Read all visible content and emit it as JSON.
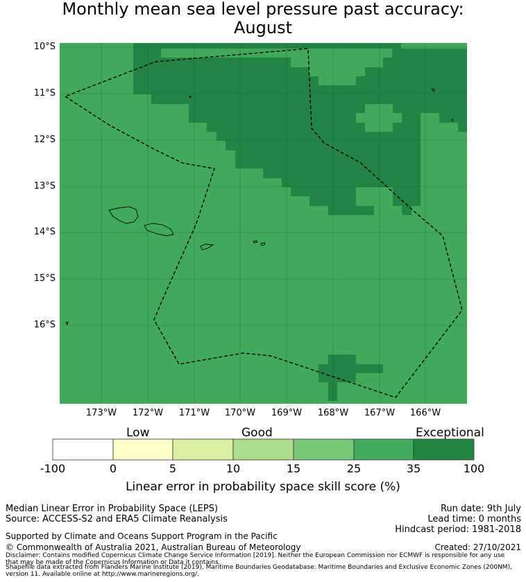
{
  "title": {
    "line1": "Monthly mean sea level pressure past accuracy:",
    "line2": "August"
  },
  "map": {
    "lat_labels": [
      "10°S",
      "11°S",
      "12°S",
      "13°S",
      "14°S",
      "15°S",
      "16°S"
    ],
    "lon_labels": [
      "173°W",
      "172°W",
      "171°W",
      "170°W",
      "169°W",
      "168°W",
      "167°W",
      "166°W"
    ],
    "colors": {
      "good_high": "#41aa5a",
      "exceptional": "#238445",
      "grid": "#1a5e30",
      "eez_line": "#000000",
      "land": "#41aa5a"
    }
  },
  "colorbar": {
    "categories": [
      "Low",
      "Good",
      "Exceptional"
    ],
    "ticks": [
      "-100",
      "0",
      "5",
      "10",
      "15",
      "25",
      "35",
      "100"
    ],
    "colors": [
      "#ffffff",
      "#ffffcc",
      "#d9f0a3",
      "#addd8e",
      "#78c679",
      "#41ab5d",
      "#238443"
    ],
    "xlabel": "Linear error in probability space skill score (%)"
  },
  "footer": {
    "left1": "Median Linear Error in Probability Space (LEPS)",
    "left2": "Source: ACCESS-S2 and ERA5 Climate Reanalysis",
    "support": "Supported by Climate and Oceans Support Program in the Pacific",
    "copyright": "© Commonwealth of Australia 2021, Australian Bureau of Meteorology",
    "run_date": "Run date: 9th July",
    "lead_time": "Lead time: 0 months",
    "hindcast": "Hindcast period: 1981-2018",
    "created": "Created: 27/10/2021",
    "disclaimer1": "Disclaimer: Contains modified Copernicus Climate Change Service Information [2019]. Neither the European Commission nor ECMWF is responsible for any use",
    "disclaimer2": "that may be made of the Copernicus Information or Data it contains.",
    "shapefile1": "Shapefile data extracted from Flanders Marine Institute (2019), Maritime Boundaries Geodatabase: Maritime Boundaries and Exclusive Economic Zones (200NM),",
    "shapefile2": "version 11. Available online at http://www.marineregions.org/."
  }
}
